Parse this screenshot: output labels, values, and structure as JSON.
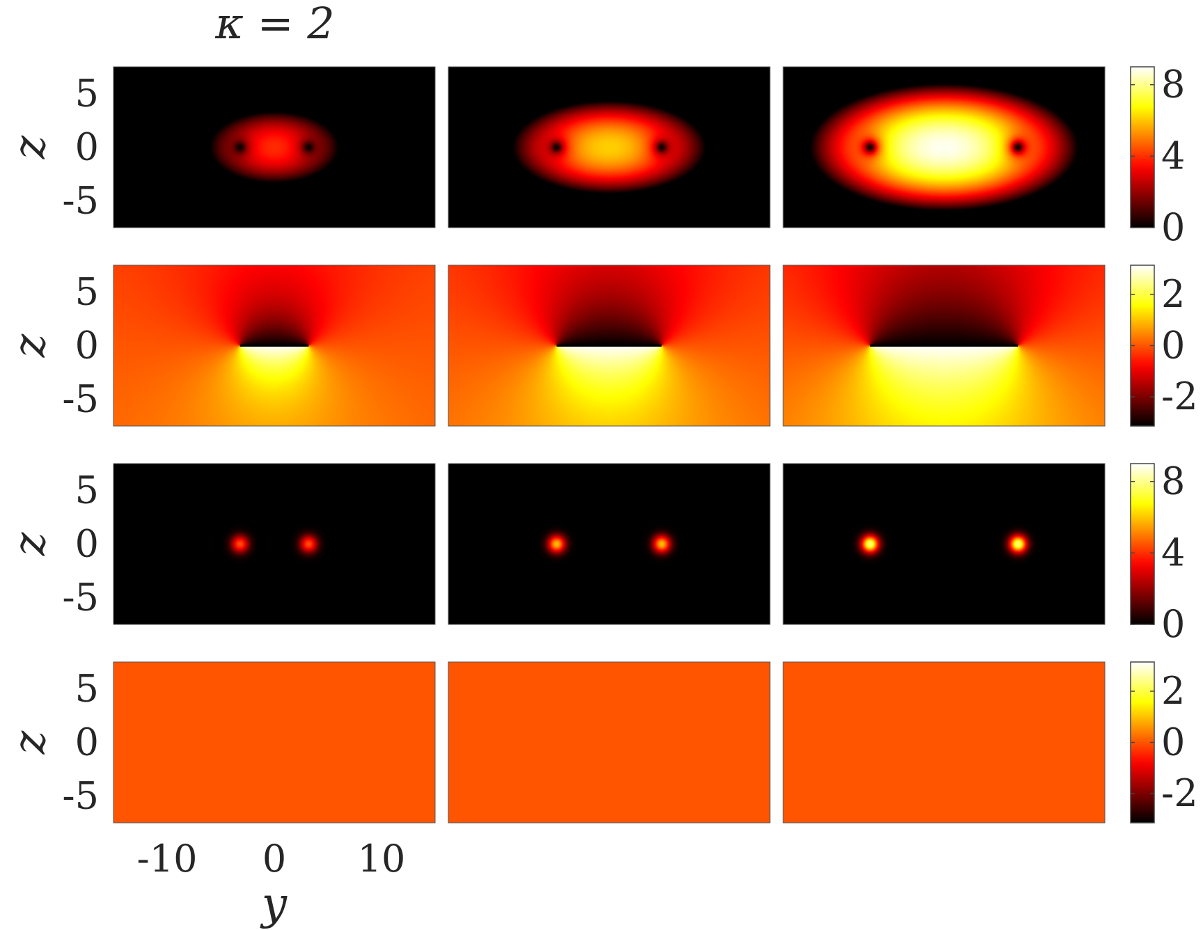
{
  "chart_data": {
    "type": "heatmap",
    "title": "κ = 2",
    "xlabel": "y",
    "ylabel": "z",
    "colormap": "hot",
    "x_range": [
      -15,
      15
    ],
    "y_range": [
      -7.5,
      7.5
    ],
    "x_ticks": [
      -10,
      0,
      10
    ],
    "x_tick_labels": [
      "-10",
      "0",
      "10"
    ],
    "y_ticks": [
      5,
      0,
      -5
    ],
    "y_tick_labels": [
      "5",
      "0",
      "-5"
    ],
    "rows": [
      {
        "quantity": "density",
        "clim": [
          0,
          9
        ],
        "colorbar_ticks": [
          8,
          4,
          0
        ],
        "colorbar_tick_labels": [
          "8",
          "4",
          "0"
        ],
        "panels": [
          {
            "peak": 4.2,
            "semi_axes": [
              6.0,
              3.3
            ],
            "vortices": [
              [
                -3.2,
                0
              ],
              [
                3.2,
                0
              ]
            ]
          },
          {
            "peak": 6.3,
            "semi_axes": [
              9.0,
              4.3
            ],
            "vortices": [
              [
                -4.9,
                0
              ],
              [
                4.9,
                0
              ]
            ]
          },
          {
            "peak": 9.0,
            "semi_axes": [
              12.5,
              5.9
            ],
            "vortices": [
              [
                -6.9,
                0
              ],
              [
                6.9,
                0
              ]
            ]
          }
        ]
      },
      {
        "quantity": "phase",
        "clim": [
          -3.14,
          3.14
        ],
        "colorbar_ticks": [
          2,
          0,
          -2
        ],
        "colorbar_tick_labels": [
          "2",
          "0",
          "-2"
        ],
        "panels": [
          {
            "vortices": [
              [
                -3.2,
                0
              ],
              [
                3.2,
                0
              ]
            ]
          },
          {
            "vortices": [
              [
                -4.9,
                0
              ],
              [
                4.9,
                0
              ]
            ]
          },
          {
            "vortices": [
              [
                -6.9,
                0
              ],
              [
                6.9,
                0
              ]
            ]
          }
        ]
      },
      {
        "quantity": "density",
        "clim": [
          0,
          9
        ],
        "colorbar_ticks": [
          8,
          4,
          0
        ],
        "colorbar_tick_labels": [
          "8",
          "4",
          "0"
        ],
        "panels": [
          {
            "peak": 4.5,
            "blob_width": 0.8,
            "centers": [
              [
                -3.2,
                0
              ],
              [
                3.2,
                0
              ]
            ]
          },
          {
            "peak": 6.0,
            "blob_width": 0.8,
            "centers": [
              [
                -4.9,
                0
              ],
              [
                4.9,
                0
              ]
            ]
          },
          {
            "peak": 8.0,
            "blob_width": 0.8,
            "centers": [
              [
                -6.9,
                0
              ],
              [
                6.9,
                0
              ]
            ]
          }
        ]
      },
      {
        "quantity": "phase",
        "clim": [
          -3.14,
          3.14
        ],
        "colorbar_ticks": [
          2,
          0,
          -2
        ],
        "colorbar_tick_labels": [
          "2",
          "0",
          "-2"
        ],
        "panels": [
          {
            "value": 0
          },
          {
            "value": 0
          },
          {
            "value": 0
          }
        ]
      }
    ]
  }
}
